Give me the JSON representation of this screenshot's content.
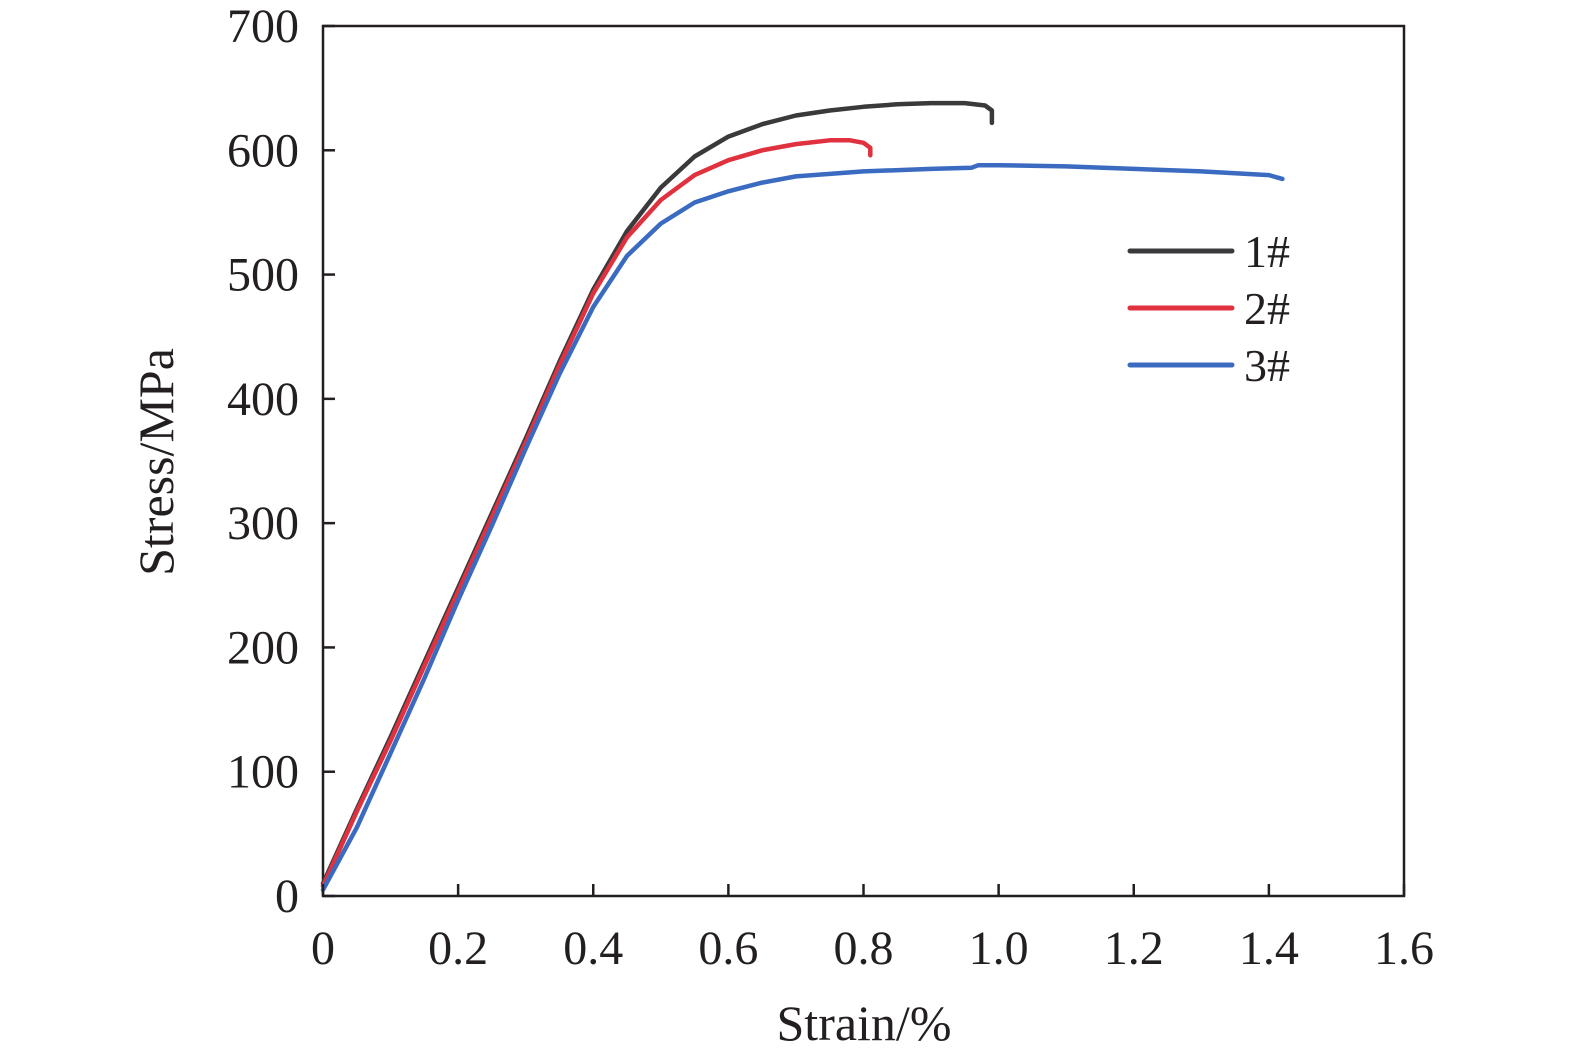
{
  "chart_data": {
    "type": "line",
    "title": "",
    "xlabel": "Strain/%",
    "ylabel": "Stress/MPa",
    "xlim": [
      0,
      1.6
    ],
    "ylim": [
      0,
      700
    ],
    "xticks": [
      0,
      0.2,
      0.4,
      0.6,
      0.8,
      1.0,
      1.2,
      1.4,
      1.6
    ],
    "xtick_labels": [
      "0",
      "0.2",
      "0.4",
      "0.6",
      "0.8",
      "1.0",
      "1.2",
      "1.4",
      "1.6"
    ],
    "yticks": [
      0,
      100,
      200,
      300,
      400,
      500,
      600,
      700
    ],
    "ytick_labels": [
      "0",
      "100",
      "200",
      "300",
      "400",
      "500",
      "600",
      "700"
    ],
    "grid": false,
    "legend_position": "right",
    "series": [
      {
        "name": "1#",
        "color": "#3a3a3c",
        "x": [
          0,
          0.05,
          0.1,
          0.15,
          0.2,
          0.25,
          0.3,
          0.35,
          0.4,
          0.45,
          0.5,
          0.55,
          0.6,
          0.65,
          0.7,
          0.75,
          0.8,
          0.85,
          0.9,
          0.95,
          0.98,
          0.99,
          0.99
        ],
        "y": [
          10,
          70,
          128,
          188,
          248,
          308,
          368,
          430,
          488,
          535,
          570,
          595,
          611,
          621,
          628,
          632,
          635,
          637,
          638,
          638,
          636,
          632,
          622
        ]
      },
      {
        "name": "2#",
        "color": "#e0313f",
        "x": [
          0,
          0.05,
          0.1,
          0.15,
          0.2,
          0.25,
          0.3,
          0.35,
          0.4,
          0.45,
          0.5,
          0.55,
          0.6,
          0.65,
          0.7,
          0.75,
          0.78,
          0.8,
          0.81,
          0.81
        ],
        "y": [
          8,
          68,
          125,
          185,
          245,
          305,
          365,
          427,
          485,
          530,
          560,
          580,
          592,
          600,
          605,
          608,
          608,
          606,
          602,
          596
        ]
      },
      {
        "name": "3#",
        "color": "#3b6bc0",
        "x": [
          0,
          0.05,
          0.1,
          0.15,
          0.2,
          0.25,
          0.3,
          0.35,
          0.4,
          0.45,
          0.5,
          0.55,
          0.6,
          0.65,
          0.7,
          0.8,
          0.9,
          0.96,
          0.97,
          1.0,
          1.1,
          1.2,
          1.3,
          1.4,
          1.42
        ],
        "y": [
          5,
          55,
          115,
          175,
          238,
          298,
          360,
          420,
          474,
          515,
          541,
          558,
          567,
          574,
          579,
          583,
          585,
          586,
          588,
          588,
          587,
          585,
          583,
          580,
          577
        ]
      }
    ]
  }
}
